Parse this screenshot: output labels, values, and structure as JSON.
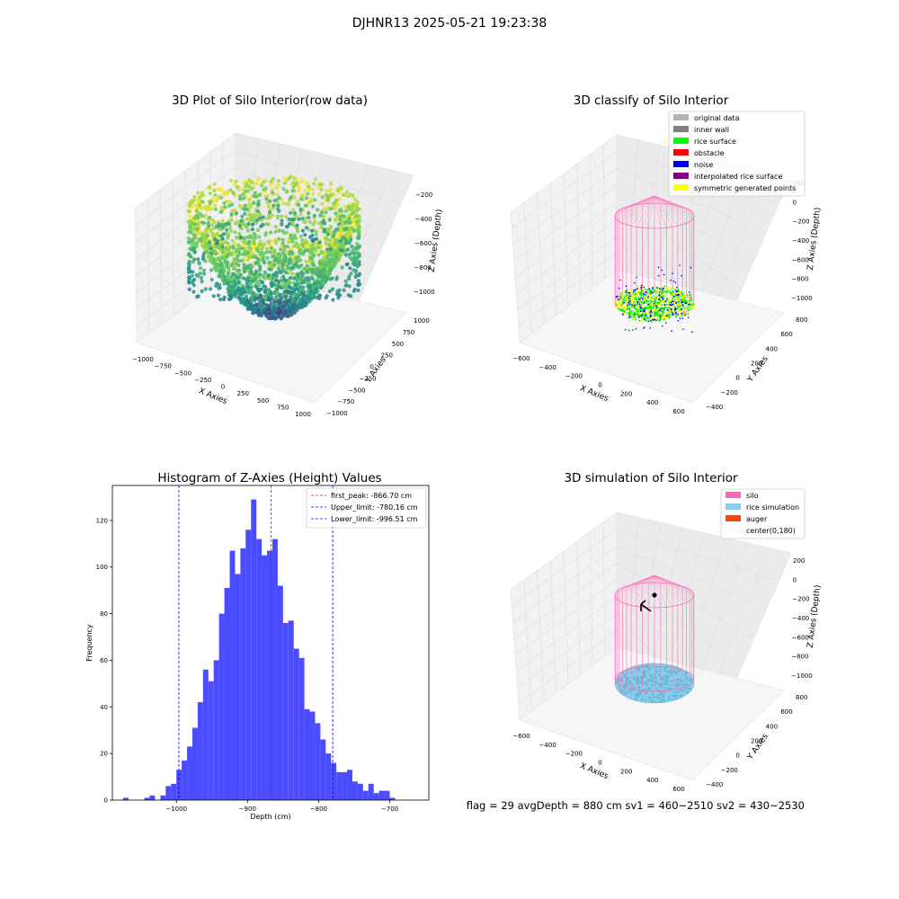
{
  "figure_title": "DJHNR13 2025-05-21 19:23:38",
  "footer_text": "flag = 29  avgDepth = 880 cm  sv1 = 460~2510  sv2 = 430~2530",
  "colors": {
    "original": "#b3b3b3",
    "inner_wall": "#808080",
    "rice_surface": "#00ff00",
    "obstacle": "#ff0000",
    "noise": "#0000ff",
    "interpolated": "#800080",
    "symmetric": "#ffff00",
    "silo": "#ff69b4",
    "rice_sim": "#87ceeb",
    "auger": "#ff4500",
    "hist_bar": "#4b4bff"
  },
  "chart_data": [
    {
      "type": "scatter3d",
      "title": "3D Plot of Silo Interior(row data)",
      "xlabel": "X Axies",
      "ylabel": "Y Axies",
      "zlabel": "Z Axies (Depth)",
      "xticks": [
        "−1000",
        "−750",
        "−500",
        "−250",
        "0",
        "250",
        "500",
        "750",
        "1000"
      ],
      "yticks": [
        "−1000",
        "−750",
        "−500",
        "−250",
        "0",
        "250",
        "500",
        "750",
        "1000"
      ],
      "zticks": [
        "−200",
        "−400",
        "−600",
        "−800",
        "−1000"
      ],
      "xlim": [
        -1000,
        1000
      ],
      "ylim": [
        -1000,
        1000
      ],
      "zlim": [
        -1100,
        -150
      ],
      "colormap": "viridis"
    },
    {
      "type": "scatter3d",
      "title": "3D classify of Silo Interior",
      "xlabel": "X Axies",
      "ylabel": "Y Axies",
      "zlabel": "Z Axies (Depth)",
      "xticks": [
        "−600",
        "−400",
        "−200",
        "0",
        "200",
        "400",
        "600"
      ],
      "yticks": [
        "800",
        "600",
        "400",
        "200",
        "0",
        "−200",
        "−400"
      ],
      "zticks": [
        "200",
        "0",
        "−200",
        "−400",
        "−600",
        "−800",
        "−1000"
      ],
      "legend": [
        "original data",
        "inner wall",
        "rice surface",
        "obstacle",
        "noise",
        "interpolated rice surface",
        "symmetric generated points"
      ],
      "legend_location": "top-right"
    },
    {
      "type": "bar",
      "title": "Histogram of Z-Axies (Height) Values",
      "xlabel": "Depth (cm)",
      "ylabel": "Frequency",
      "xlim": [
        -1090,
        -645
      ],
      "ylim": [
        0,
        135
      ],
      "xticks": [
        "−1000",
        "−900",
        "−800",
        "−700"
      ],
      "yticks": [
        "0",
        "20",
        "40",
        "60",
        "80",
        "100",
        "120"
      ],
      "bin_start": -1075,
      "bin_width": 7.5,
      "values": [
        1,
        0,
        0,
        0,
        1,
        2,
        0,
        2,
        6,
        7,
        13,
        17,
        23,
        31,
        42,
        56,
        51,
        60,
        80,
        91,
        107,
        97,
        108,
        116,
        129,
        112,
        105,
        107,
        112,
        92,
        76,
        77,
        65,
        61,
        39,
        38,
        33,
        26,
        20,
        16,
        12,
        12,
        13,
        8,
        7,
        4,
        7,
        3,
        4,
        4,
        1
      ],
      "vlines": [
        {
          "label": "first_peak: -866.70 cm",
          "x": -866.7,
          "color": "#ff0000"
        },
        {
          "label": "Upper_limit: -780.16 cm",
          "x": -780.16,
          "color": "#0000ff"
        },
        {
          "label": "Lower_limit: -996.51 cm",
          "x": -996.51,
          "color": "#0000ff"
        }
      ],
      "legend_location": "top-right"
    },
    {
      "type": "scatter3d",
      "title": "3D simulation of Silo Interior",
      "xlabel": "X Axies",
      "ylabel": "Y Axies",
      "zlabel": "Z Axies (Depth)",
      "xticks": [
        "−600",
        "−400",
        "−200",
        "0",
        "200",
        "400",
        "600"
      ],
      "yticks": [
        "800",
        "600",
        "400",
        "200",
        "0",
        "−200",
        "−400"
      ],
      "zticks": [
        "200",
        "0",
        "−200",
        "−400",
        "−600",
        "−800",
        "−1000"
      ],
      "legend": [
        "silo",
        "rice simulation",
        "auger",
        "center(0,180)"
      ],
      "legend_location": "top-right"
    }
  ]
}
